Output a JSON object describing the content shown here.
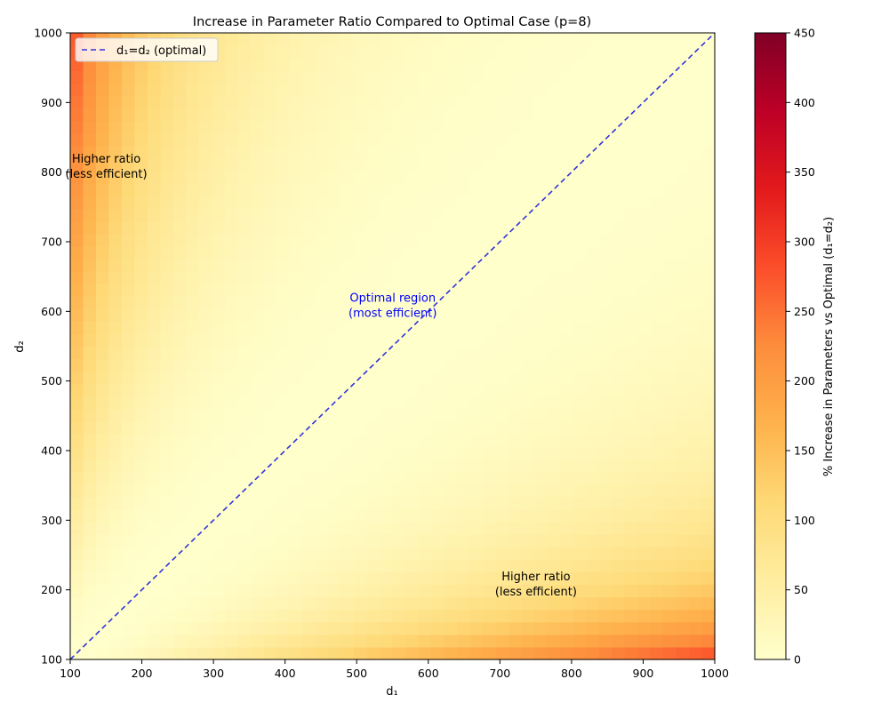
{
  "chart_data": {
    "type": "heatmap",
    "title": "Increase in Parameter Ratio Compared to Optimal Case (p=8)",
    "xlabel": "d₁",
    "ylabel": "d₂",
    "xlim": [
      100,
      1000
    ],
    "ylim": [
      100,
      1000
    ],
    "x_ticks": [
      100,
      200,
      300,
      400,
      500,
      600,
      700,
      800,
      900,
      1000
    ],
    "y_ticks": [
      100,
      200,
      300,
      400,
      500,
      600,
      700,
      800,
      900,
      1000
    ],
    "grid_cells": 50,
    "p": 8,
    "value_formula": "100 * ((d1 + d2) / (2 * sqrt(d1 * d2)) - 1) * p / 2, capped at 450",
    "colormap": "YlOrRd",
    "colorbar": {
      "label": "% Increase in Parameters vs Optimal (d₁=d₂)",
      "min": 0,
      "max": 450,
      "ticks": [
        0,
        50,
        100,
        150,
        200,
        250,
        300,
        350,
        400,
        450
      ]
    },
    "series": [
      {
        "name": "d₁=d₂ (optimal)",
        "x": [
          100,
          1000
        ],
        "y": [
          100,
          1000
        ],
        "style": "dashed",
        "color": "#3333dd"
      }
    ],
    "legend": {
      "placement": "top-left",
      "label": "d₁=d₂ (optimal)"
    },
    "annotations": [
      {
        "text": [
          "Higher ratio",
          "(less efficient)"
        ],
        "x": 200,
        "y": 810,
        "color": "#000000"
      },
      {
        "text": [
          "Optimal region",
          "(most efficient)"
        ],
        "x": 600,
        "y": 610,
        "color": "#0000ff"
      },
      {
        "text": [
          "Higher ratio",
          "(less efficient)"
        ],
        "x": 800,
        "y": 210,
        "color": "#000000"
      }
    ]
  }
}
